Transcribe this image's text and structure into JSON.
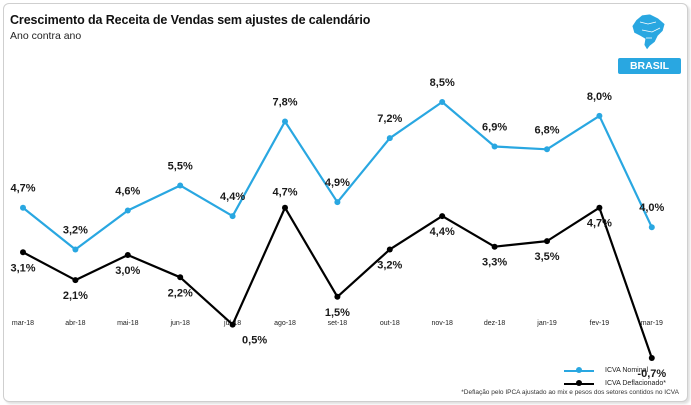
{
  "header": {
    "title": "Crescimento da Receita de Vendas sem ajustes de calendário",
    "subtitle": "Ano contra ano",
    "badge": "BRASIL"
  },
  "note": "*Deflação pelo IPCA ajustado ao mix e pesos dos setores contidos no ICVA",
  "colors": {
    "nominal": "#29a7e1",
    "deflated": "#000000",
    "badge": "#29a7e1"
  },
  "chart_data": {
    "type": "line",
    "title": "Crescimento da Receita de Vendas sem ajustes de calendário",
    "subtitle": "Ano contra ano",
    "xlabel": "",
    "ylabel": "",
    "categories": [
      "mar-18",
      "abr-18",
      "mai-18",
      "jun-18",
      "jul-18",
      "ago-18",
      "set-18",
      "out-18",
      "nov-18",
      "dez-18",
      "jan-19",
      "fev-19",
      "mar-19"
    ],
    "series": [
      {
        "name": "ICVA Nominal",
        "values": [
          4.7,
          3.2,
          4.6,
          5.5,
          4.4,
          7.8,
          4.9,
          7.2,
          8.5,
          6.9,
          6.8,
          8.0,
          4.0
        ],
        "labels": [
          "4,7%",
          "3,2%",
          "4,6%",
          "5,5%",
          "4,4%",
          "7,8%",
          "4,9%",
          "7,2%",
          "8,5%",
          "6,9%",
          "6,8%",
          "8,0%",
          "4,0%"
        ]
      },
      {
        "name": "ICVA Deflacionado*",
        "values": [
          3.1,
          2.1,
          3.0,
          2.2,
          0.5,
          4.7,
          1.5,
          3.2,
          4.4,
          3.3,
          3.5,
          4.7,
          -0.7
        ],
        "labels": [
          "3,1%",
          "2,1%",
          "3,0%",
          "2,2%",
          "0,5%",
          "4,7%",
          "1,5%",
          "3,2%",
          "4,4%",
          "3,3%",
          "3,5%",
          "4,7%",
          "-0,7%"
        ]
      }
    ],
    "ylim": [
      -0.7,
      8.5
    ],
    "grid": false,
    "legend": "bottom-right"
  }
}
